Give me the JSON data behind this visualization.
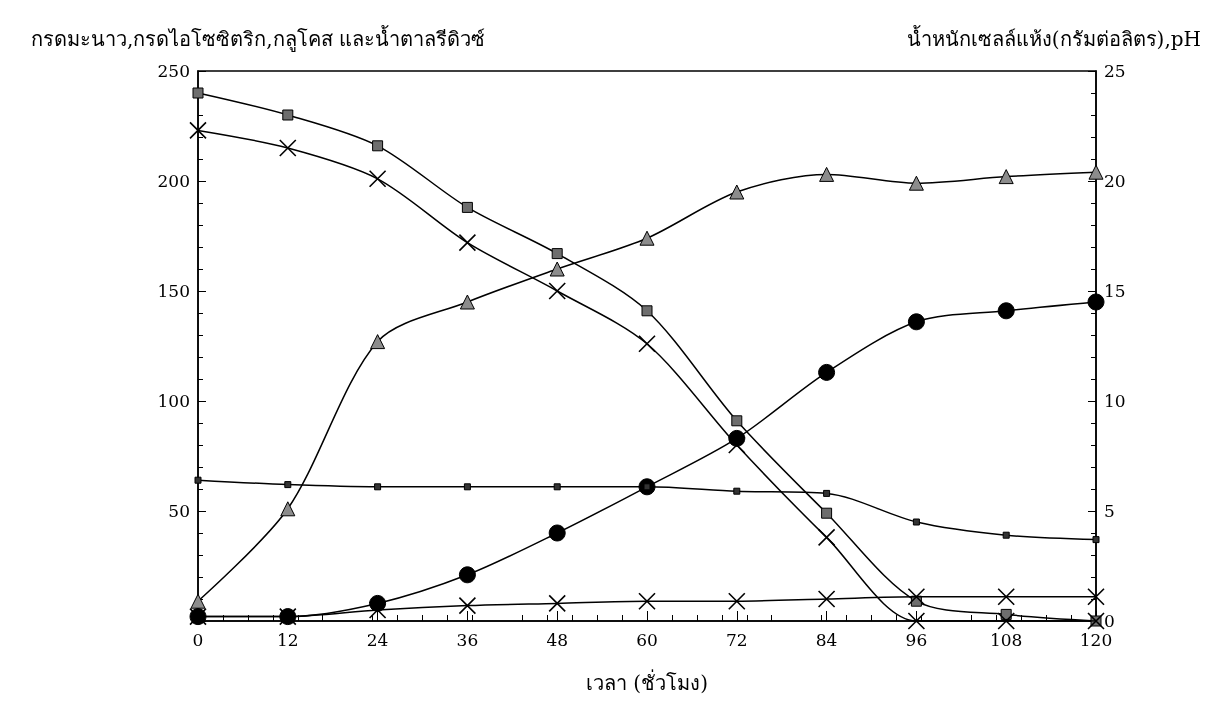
{
  "chart_data": {
    "type": "line",
    "ylabel": "กรดมะนาว,กรดไอโซซิตริก,กลูโคส และน้ำตาลรีดิวซ์",
    "y2label": "น้ำหนักเซลล์แห้ง(กรัมต่อลิตร),pH",
    "xlabel": "เวลา (ชั่วโมง)",
    "x": [
      0,
      12,
      24,
      36,
      48,
      60,
      72,
      84,
      96,
      108,
      120
    ],
    "xlim": [
      0,
      120
    ],
    "xticks": [
      0,
      12,
      24,
      36,
      48,
      60,
      72,
      84,
      96,
      108,
      120
    ],
    "ylim": [
      0,
      250
    ],
    "yticks": [
      {
        "value": 0,
        "label": null
      },
      50,
      100,
      150,
      200,
      250
    ],
    "y2lim": [
      0,
      25
    ],
    "y2ticks": [
      0,
      5,
      10,
      15,
      20,
      25
    ],
    "grid": false,
    "line_style": "solid",
    "series": [
      {
        "color": "#6e6e6e",
        "marker": "square",
        "values": [
          240,
          230,
          216,
          188,
          167,
          141,
          91,
          49,
          9,
          3,
          0
        ]
      },
      {
        "color": "#000000",
        "marker": "cross",
        "values": [
          223,
          215,
          201,
          172,
          150,
          126,
          80,
          38,
          0,
          0,
          0
        ]
      },
      {
        "color": "#8c8c8c",
        "marker": "triangle",
        "values": [
          9,
          51,
          127,
          145,
          160,
          174,
          195,
          203,
          199,
          202,
          204
        ]
      },
      {
        "color": "#000000",
        "marker": "circle",
        "values": [
          2,
          2,
          8,
          21,
          40,
          61,
          83,
          113,
          136,
          141,
          145
        ]
      },
      {
        "color": "#000000",
        "marker": "cross",
        "values": [
          2,
          2,
          5,
          7,
          8,
          9,
          9,
          10,
          11,
          11,
          11
        ]
      },
      {
        "color": "#333333",
        "marker": "square",
        "axis": "y2",
        "values": [
          6.4,
          6.2,
          6.1,
          6.1,
          6.1,
          6.1,
          5.9,
          5.8,
          4.5,
          3.9,
          3.7
        ]
      }
    ]
  }
}
